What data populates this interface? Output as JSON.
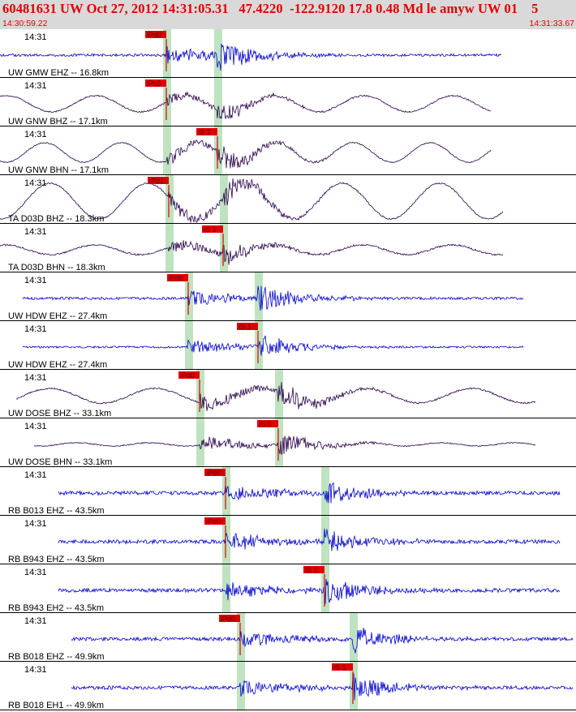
{
  "header": {
    "title": "60481631 UW Oct 27, 2012 14:31:05.31   47.4220  -122.9120 17.8 0.48 Md le amyw UW 01    5",
    "start_time": "14:30:59.22",
    "end_time": "14:31:33.67"
  },
  "colors": {
    "header_bg": "#d9d9d9",
    "header_text": "#e00000",
    "trace_blue": "#0000d0",
    "trace_dark": "#2a004a",
    "pick_red": "#e00000",
    "window_green": "#bfe3c0"
  },
  "traces": [
    {
      "time_label": "14:31",
      "name": "UW GMW EHZ -- 16.8km",
      "color": "blue",
      "pick": "iPd0",
      "p": 205,
      "s": 268,
      "start": 0,
      "end": 618,
      "amp": 20,
      "noise": 0.8,
      "bg": 0,
      "bgp": 40,
      "pickpos": "p",
      "seed": 1
    },
    {
      "time_label": "14:31",
      "name": "UW GNW BHZ -- 17.1km",
      "color": "dark",
      "pick": "iPc0",
      "p": 205,
      "s": 268,
      "start": 0,
      "end": 605,
      "amp": 12,
      "noise": 0.4,
      "bg": 10,
      "bgp": 110,
      "pickpos": "p",
      "seed": 2
    },
    {
      "time_label": "14:31",
      "name": "UW GNW BHN -- 17.1km",
      "color": "dark",
      "pick": "iS 1",
      "p": 205,
      "s": 268,
      "start": 0,
      "end": 605,
      "amp": 14,
      "noise": 0.3,
      "bg": 12,
      "bgp": 95,
      "pickpos": "s",
      "seed": 3
    },
    {
      "time_label": "14:31",
      "name": "TA D03D BHZ -- 18.3km",
      "color": "dark",
      "pick": "iPd1",
      "p": 208,
      "s": 275,
      "start": 0,
      "end": 620,
      "amp": 16,
      "noise": 0.4,
      "bg": 22,
      "bgp": 120,
      "pickpos": "p",
      "seed": 4
    },
    {
      "time_label": "14:31",
      "name": "TA D03D BHN -- 18.3km",
      "color": "dark",
      "pick": "iS 1",
      "p": 208,
      "s": 275,
      "start": 0,
      "end": 620,
      "amp": 13,
      "noise": 0.5,
      "bg": 6,
      "bgp": 110,
      "pickpos": "s",
      "seed": 5
    },
    {
      "time_label": "14:31",
      "name": "UW HDW EHZ -- 27.4km",
      "color": "blue",
      "pick": "iPd0",
      "p": 232,
      "s": 318,
      "start": 28,
      "end": 645,
      "amp": 18,
      "noise": 0.8,
      "bg": 0,
      "bgp": 40,
      "pickpos": "p",
      "seed": 6
    },
    {
      "time_label": "14:31",
      "name": "UW HDW EHZ -- 27.4km",
      "color": "blue",
      "pick": "iS 1",
      "p": 232,
      "s": 318,
      "start": 28,
      "end": 645,
      "amp": 16,
      "noise": 0.6,
      "bg": 0,
      "bgp": 40,
      "pickpos": "s",
      "seed": 7
    },
    {
      "time_label": "14:31",
      "name": "UW DOSE BHZ -- 33.1km",
      "color": "dark",
      "pick": "iPd0",
      "p": 246,
      "s": 343,
      "start": 20,
      "end": 660,
      "amp": 18,
      "noise": 0.5,
      "bg": 9,
      "bgp": 130,
      "pickpos": "p",
      "seed": 8
    },
    {
      "time_label": "14:31",
      "name": "UW DOSE BHN -- 33.1km",
      "color": "dark",
      "pick": "iS 0",
      "p": 246,
      "s": 343,
      "start": 42,
      "end": 660,
      "amp": 17,
      "noise": 0.3,
      "bg": 2,
      "bgp": 90,
      "pickpos": "s",
      "seed": 9
    },
    {
      "time_label": "14:31",
      "name": "RB B013 EHZ -- 43.5km",
      "color": "blue",
      "pick": "iPd0",
      "p": 278,
      "s": 400,
      "start": 72,
      "end": 690,
      "amp": 18,
      "noise": 1.2,
      "bg": 0,
      "bgp": 40,
      "pickpos": "p",
      "seed": 10
    },
    {
      "time_label": "14:31",
      "name": "RB B943 EHZ -- 43.5km",
      "color": "blue",
      "pick": "iPd0",
      "p": 278,
      "s": 400,
      "start": 72,
      "end": 690,
      "amp": 18,
      "noise": 1.2,
      "bg": 0,
      "bgp": 40,
      "pickpos": "p",
      "seed": 11
    },
    {
      "time_label": "14:31",
      "name": "RB B943 EH2 -- 43.5km",
      "color": "blue",
      "pick": "iS 1",
      "p": 278,
      "s": 400,
      "start": 72,
      "end": 690,
      "amp": 18,
      "noise": 1.2,
      "bg": 0,
      "bgp": 40,
      "pickpos": "s",
      "seed": 12
    },
    {
      "time_label": "14:31",
      "name": "RB B018 EHZ -- 49.9km",
      "color": "blue",
      "pick": "iPd0",
      "p": 296,
      "s": 435,
      "start": 88,
      "end": 706,
      "amp": 18,
      "noise": 1.1,
      "bg": 0,
      "bgp": 40,
      "pickpos": "p",
      "seed": 13
    },
    {
      "time_label": "14:31",
      "name": "RB B018 EH1 -- 49.9km",
      "color": "blue",
      "pick": "iS 1",
      "p": 296,
      "s": 435,
      "start": 88,
      "end": 706,
      "amp": 18,
      "noise": 1.1,
      "bg": 0,
      "bgp": 40,
      "pickpos": "s",
      "seed": 14
    }
  ]
}
